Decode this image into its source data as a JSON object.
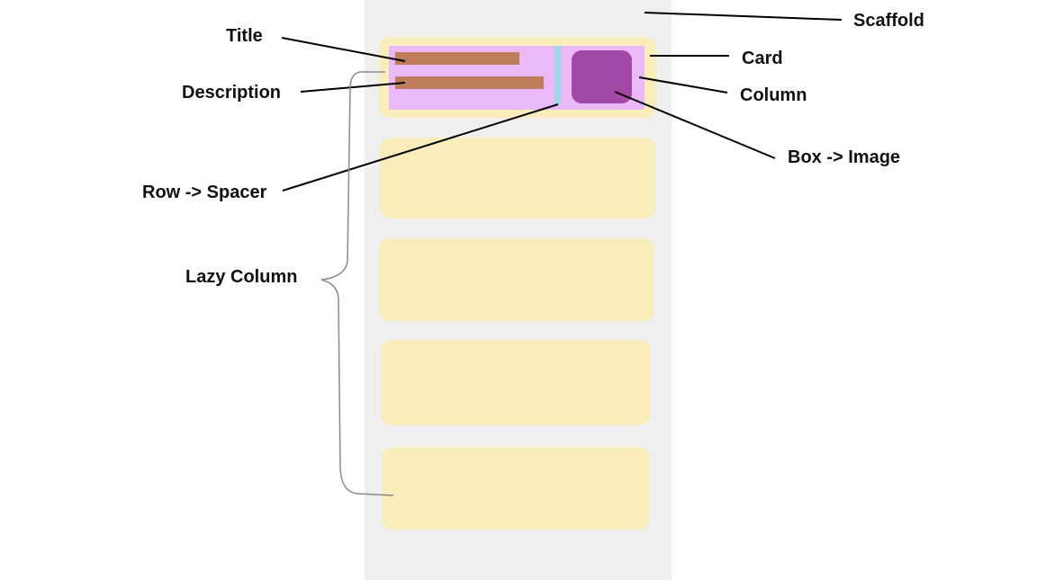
{
  "labels": {
    "title": "Title",
    "description": "Description",
    "row_spacer": "Row -> Spacer",
    "lazy_column": "Lazy Column",
    "scaffold": "Scaffold",
    "card": "Card",
    "column": "Column",
    "box_image": "Box -> Image"
  },
  "colors": {
    "scaffold": "#efefef",
    "card": "#f8edbb",
    "column": "#ecb9f8",
    "text_bar": "#bd7d5d",
    "spacer": "#9fd8e6",
    "image": "#a248a6"
  }
}
